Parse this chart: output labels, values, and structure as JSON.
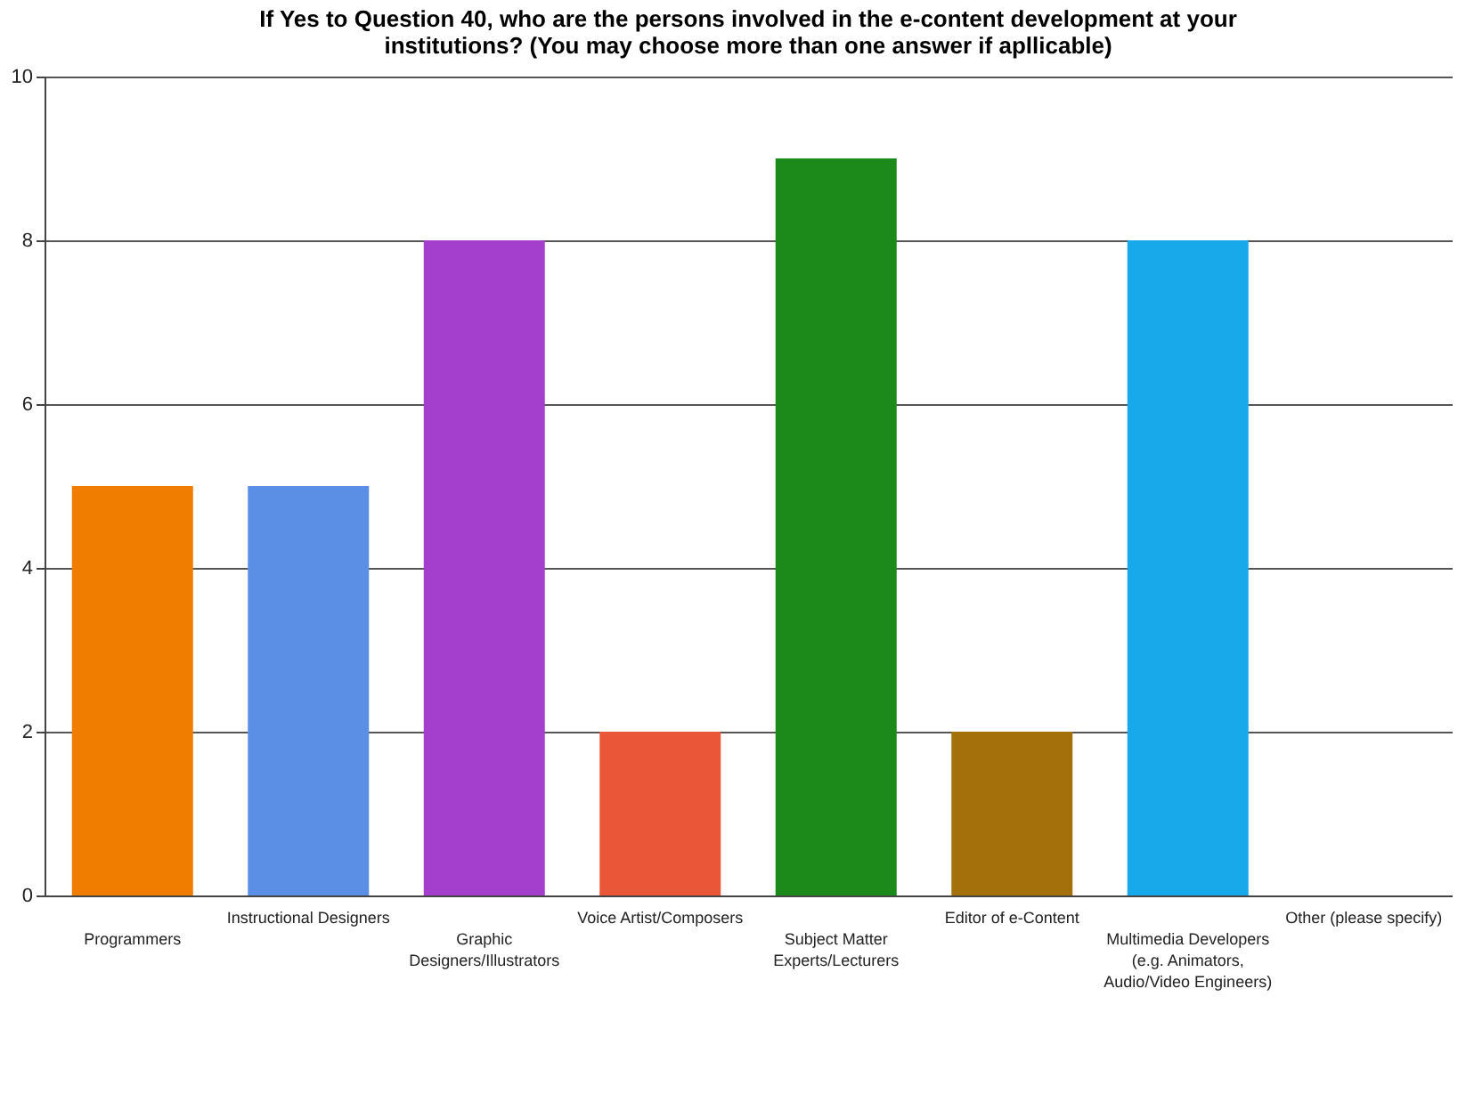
{
  "chart_data": {
    "type": "bar",
    "title": "If Yes to Question 40, who are the persons involved in the e-content development at your institutions? (You may choose more than one answer if apllicable)",
    "categories": [
      "Programmers",
      "Instructional Designers",
      "Graphic Designers/Illustrators",
      "Voice Artist/Composers",
      "Subject Matter Experts/Lecturers",
      "Editor of e-Content",
      "Multimedia Developers (e.g. Animators, Audio/Video Engineers)",
      "Other (please specify)"
    ],
    "values": [
      5,
      5,
      8,
      2,
      9,
      2,
      8,
      0
    ],
    "colors": [
      "#f07d00",
      "#5b8fe6",
      "#a33fcc",
      "#ea5638",
      "#1b8a1b",
      "#a4700c",
      "#17a9ea",
      "#999999"
    ],
    "ylim": [
      0,
      10
    ],
    "yticks": [
      0,
      2,
      4,
      6,
      8,
      10
    ],
    "grid": "y"
  }
}
